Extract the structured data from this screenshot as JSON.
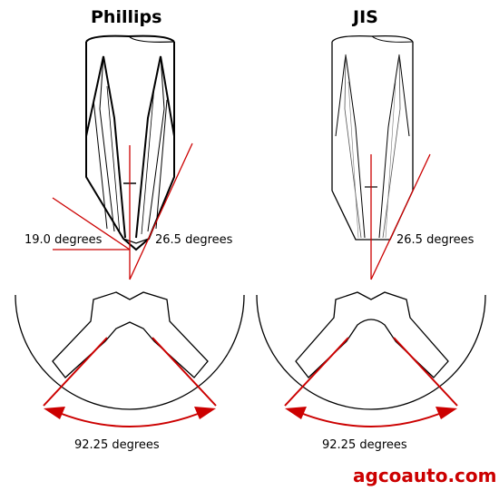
{
  "titles": {
    "phillips": "Phillips",
    "jis": "JIS"
  },
  "labels": {
    "phillips_left_angle": "19.0 degrees",
    "phillips_right_angle": "26.5 degrees",
    "jis_angle": "26.5 degrees",
    "phillips_spread": "92.25 degrees",
    "jis_spread": "92.25 degrees"
  },
  "brand": "agcoauto.com",
  "colors": {
    "accent": "#cc0000",
    "line": "#000000"
  }
}
